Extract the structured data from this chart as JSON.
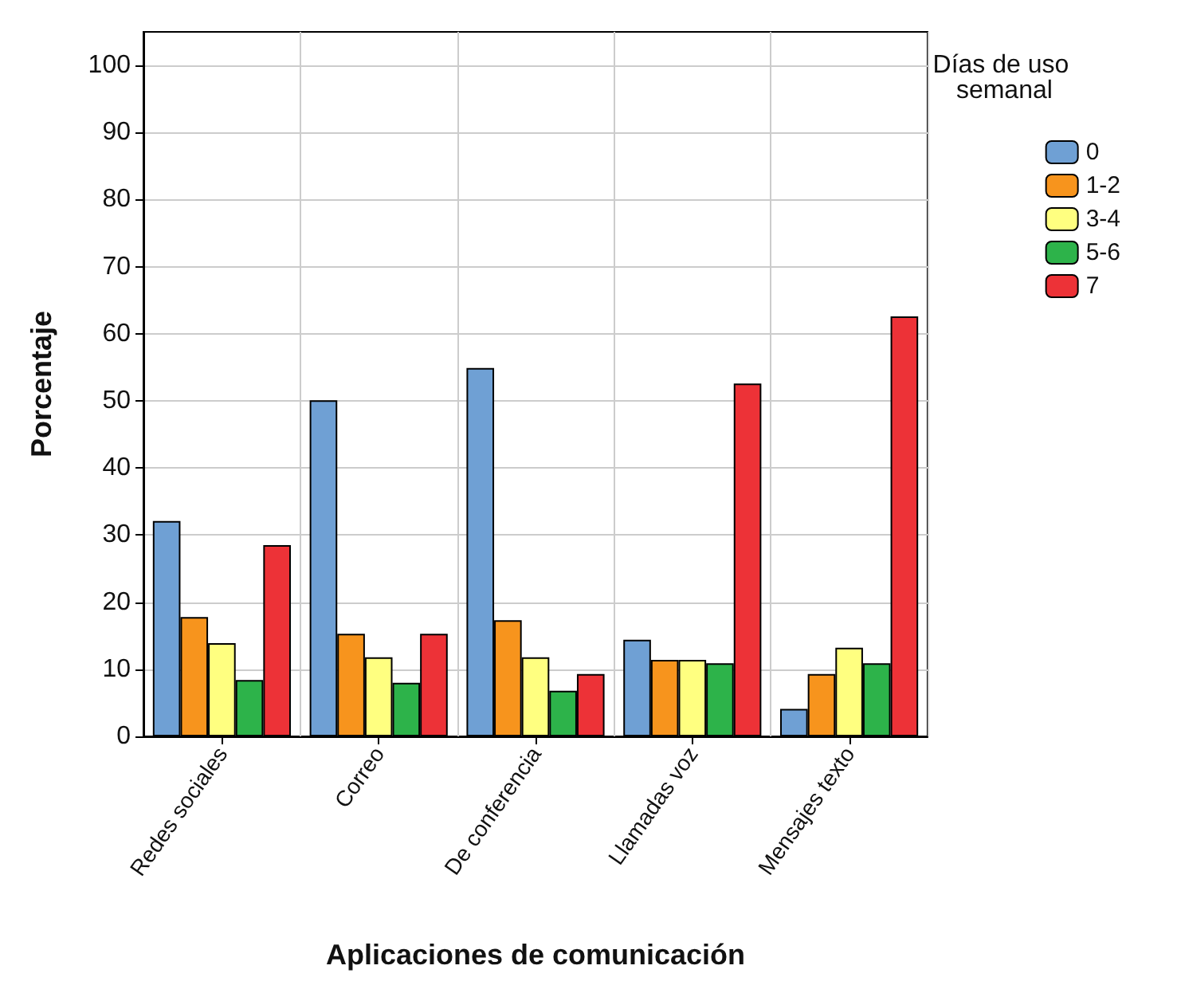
{
  "chart_data": {
    "type": "bar",
    "xlabel": "Aplicaciones de comunicación",
    "ylabel": "Porcentaje",
    "legend_title": "Días de uso semanal",
    "categories": [
      "Redes sociales",
      "Correo",
      "De conferencia",
      "Llamadas voz",
      "Mensajes texto"
    ],
    "series": [
      {
        "name": "0",
        "color": "#6fa0d4",
        "values": [
          32.1,
          50.1,
          54.9,
          14.4,
          4.1
        ]
      },
      {
        "name": "1-2",
        "color": "#f7941d",
        "values": [
          17.8,
          15.3,
          17.3,
          11.4,
          9.3
        ]
      },
      {
        "name": "3-4",
        "color": "#ffff80",
        "values": [
          13.9,
          11.8,
          11.8,
          11.4,
          13.2
        ]
      },
      {
        "name": "5-6",
        "color": "#2db34a",
        "values": [
          8.4,
          8.0,
          6.8,
          10.9,
          10.9
        ]
      },
      {
        "name": "7",
        "color": "#ed3237",
        "values": [
          28.5,
          15.3,
          9.3,
          52.6,
          62.6
        ]
      }
    ],
    "ylim": [
      0,
      105
    ],
    "yticks": [
      0,
      10,
      20,
      30,
      40,
      50,
      60,
      70,
      80,
      90,
      100
    ],
    "grid": true,
    "legend": "top right"
  }
}
